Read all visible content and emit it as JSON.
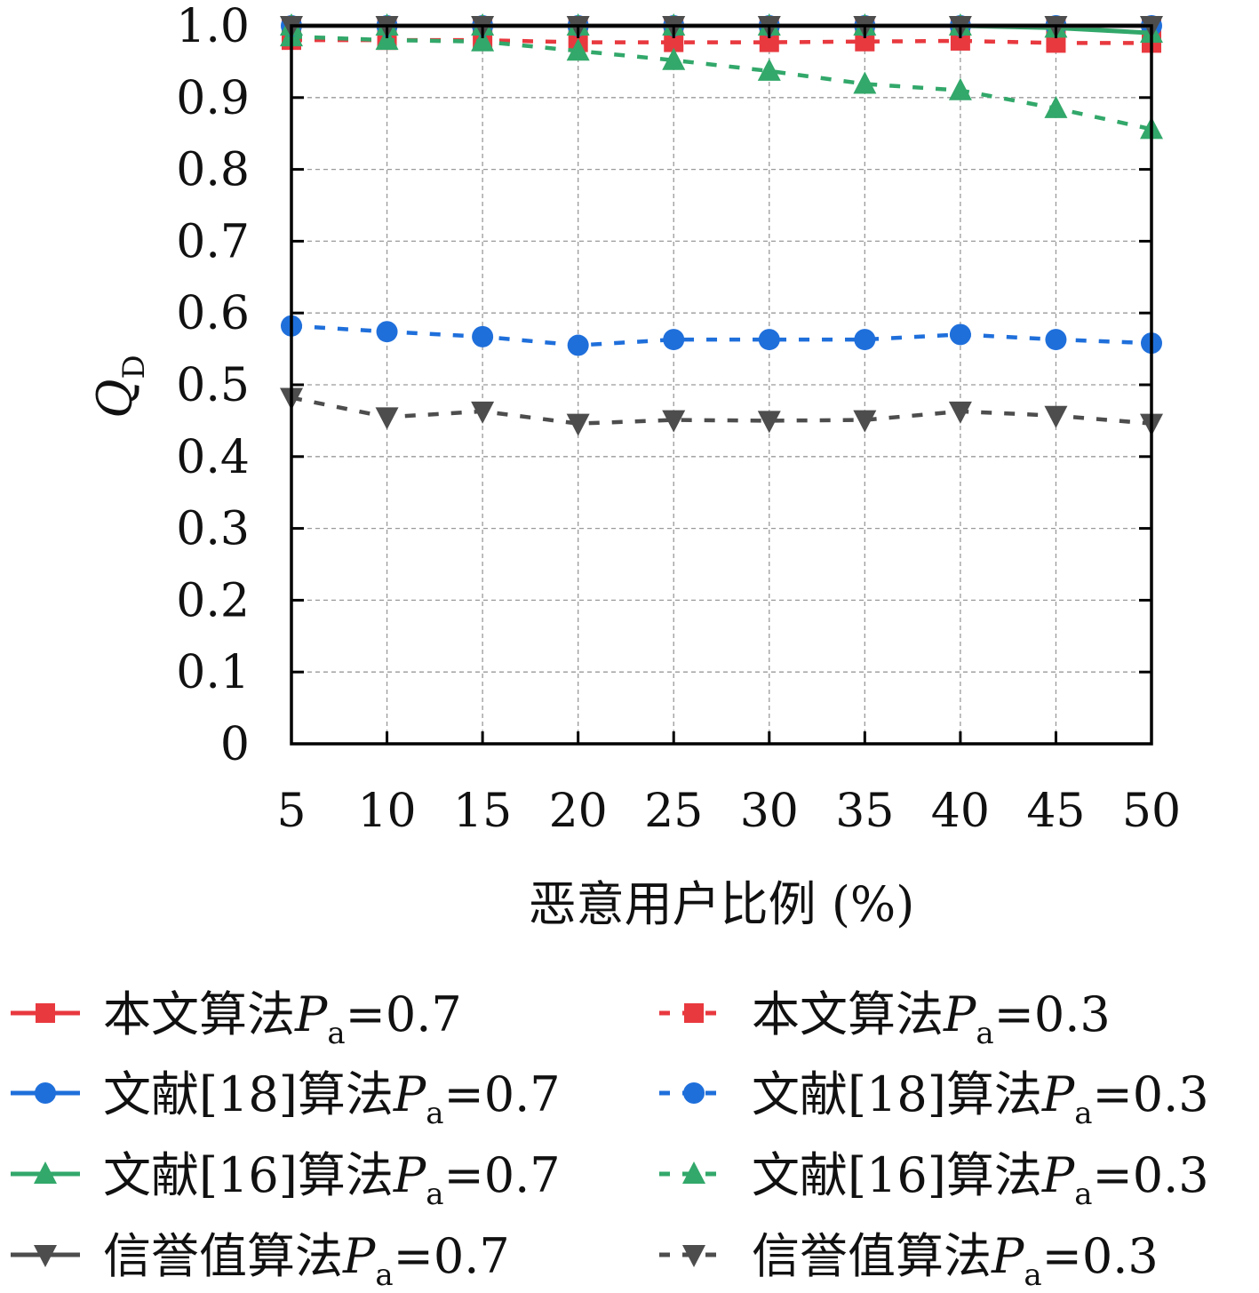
{
  "chart_data": {
    "type": "line",
    "xlabel": "恶意用户比例 (%)",
    "ylabel": "Q",
    "ylabel_sub": "D",
    "x": [
      5,
      10,
      15,
      20,
      25,
      30,
      35,
      40,
      45,
      50
    ],
    "xticks": [
      "5",
      "10",
      "15",
      "20",
      "25",
      "30",
      "35",
      "40",
      "45",
      "50"
    ],
    "yticks": [
      "0",
      "0.1",
      "0.2",
      "0.3",
      "0.4",
      "0.5",
      "0.6",
      "0.7",
      "0.8",
      "0.9",
      "1.0"
    ],
    "xlim": [
      5,
      50
    ],
    "ylim": [
      0,
      1.0
    ],
    "grid": true,
    "legend_placement": "below",
    "series": [
      {
        "label": "本文算法",
        "sub": "a",
        "suffix": "=0.7",
        "color": "#e8393f",
        "marker": "square",
        "dash": "solid",
        "values": [
          1.0,
          1.0,
          1.0,
          1.0,
          1.0,
          1.0,
          1.0,
          1.0,
          1.0,
          1.0
        ]
      },
      {
        "label": "本文算法",
        "sub": "a",
        "suffix": "=0.3",
        "color": "#e8393f",
        "marker": "square",
        "dash": "dashed",
        "values": [
          0.98,
          0.98,
          0.98,
          0.977,
          0.977,
          0.977,
          0.978,
          0.979,
          0.976,
          0.976
        ]
      },
      {
        "label": "文献[18]算法",
        "sub": "a",
        "suffix": "=0.7",
        "color": "#1f6fdb",
        "marker": "circle",
        "dash": "solid",
        "values": [
          1.0,
          1.0,
          1.0,
          1.0,
          1.0,
          1.0,
          1.0,
          1.0,
          1.0,
          1.0
        ]
      },
      {
        "label": "文献[18]算法",
        "sub": "a",
        "suffix": "=0.3",
        "color": "#1f6fdb",
        "marker": "circle",
        "dash": "dashed",
        "values": [
          0.582,
          0.574,
          0.567,
          0.555,
          0.563,
          0.563,
          0.563,
          0.57,
          0.563,
          0.558
        ]
      },
      {
        "label": "文献[16]算法",
        "sub": "a",
        "suffix": "=0.7",
        "color": "#32a86a",
        "marker": "triangle-up",
        "dash": "solid",
        "values": [
          1.0,
          1.0,
          1.0,
          1.0,
          1.0,
          1.0,
          1.0,
          1.0,
          0.997,
          0.99
        ]
      },
      {
        "label": "文献[16]算法",
        "sub": "a",
        "suffix": "=0.3",
        "color": "#32a86a",
        "marker": "triangle-up",
        "dash": "dashed",
        "values": [
          0.985,
          0.98,
          0.978,
          0.965,
          0.952,
          0.937,
          0.919,
          0.91,
          0.885,
          0.856
        ]
      },
      {
        "label": "信誉值算法",
        "sub": "a",
        "suffix": "=0.7",
        "color": "#4d4d4d",
        "marker": "triangle-down",
        "dash": "solid",
        "values": [
          1.0,
          1.0,
          1.0,
          1.0,
          1.0,
          1.0,
          1.0,
          1.0,
          1.0,
          1.0
        ]
      },
      {
        "label": "信誉值算法",
        "sub": "a",
        "suffix": "=0.3",
        "color": "#4d4d4d",
        "marker": "triangle-down",
        "dash": "dashed",
        "values": [
          0.482,
          0.455,
          0.463,
          0.446,
          0.451,
          0.45,
          0.451,
          0.463,
          0.457,
          0.446
        ]
      }
    ]
  }
}
